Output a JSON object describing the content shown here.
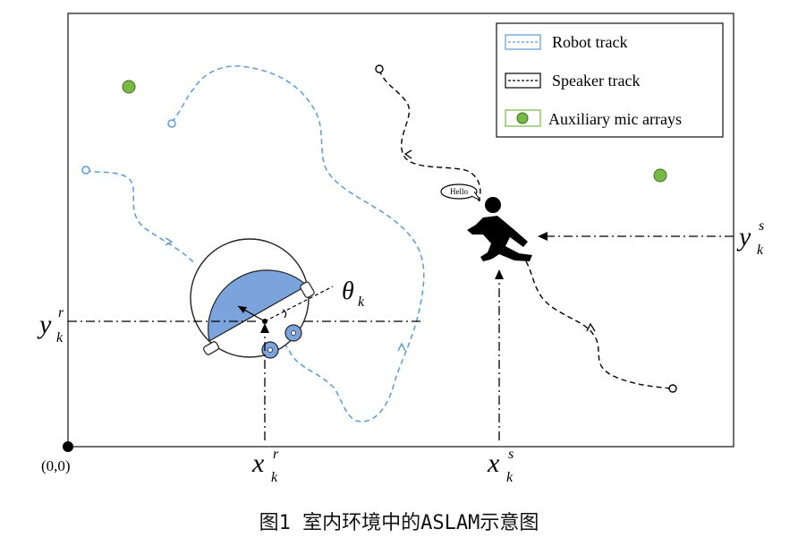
{
  "legend": {
    "robot_track": "Robot track",
    "speaker_track": "Speaker track",
    "aux_mics": "Auxiliary mic arrays"
  },
  "labels": {
    "origin": "(0,0)",
    "speech": "Hello",
    "theta": "θ",
    "theta_sub": "k",
    "y_r": "y",
    "y_r_sup": "r",
    "y_r_sub": "k",
    "x_r": "x",
    "x_r_sup": "r",
    "x_r_sub": "k",
    "x_s": "x",
    "x_s_sup": "s",
    "x_s_sub": "k",
    "y_s": "y",
    "y_s_sup": "s",
    "y_s_sub": "k"
  },
  "caption": "图1 室内环境中的ASLAM示意图",
  "colors": {
    "robot_track": "#5b9bd5",
    "robot_body": "#7ba3dc",
    "mic": "#78b844",
    "speaker_track": "#000000"
  }
}
